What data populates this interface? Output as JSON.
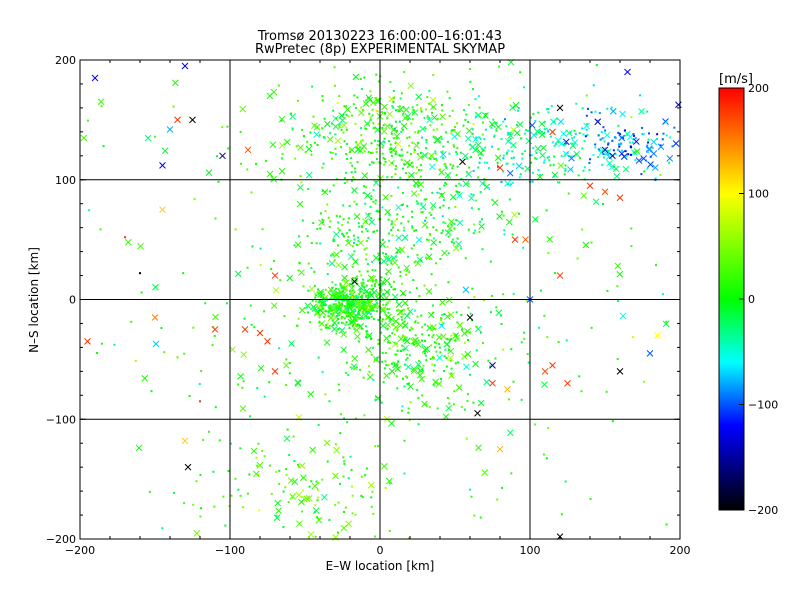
{
  "chart_data": {
    "type": "scatter",
    "title": "Tromsø 20130223 16:00:00–16:01:43",
    "subtitle": "RwPretec (8p) EXPERIMENTAL SKYMAP",
    "xlabel": "E–W location [km]",
    "ylabel": "N–S location [km]",
    "xlim": [
      -200,
      200
    ],
    "ylim": [
      -200,
      200
    ],
    "x_ticks": [
      "−200",
      "−100",
      "0",
      "100",
      "200"
    ],
    "y_ticks": [
      "−200",
      "−100",
      "0",
      "100",
      "200"
    ],
    "grid": true,
    "colorbar": {
      "label": "[m/s]",
      "range": [
        -200,
        200
      ],
      "ticks": [
        "200",
        "100",
        "0",
        "−100",
        "−200"
      ],
      "colors": [
        "#ff0000",
        "#ffff00",
        "#00ff00",
        "#00ffff",
        "#0000ff",
        "#000000"
      ]
    },
    "marker_types": [
      "dot",
      "cross"
    ],
    "clusters": [
      {
        "x": -20,
        "y": -5,
        "sx": 12,
        "sy": 10,
        "n": 420,
        "v": 8
      },
      {
        "x": 5,
        "y": 140,
        "sx": 35,
        "sy": 20,
        "n": 380,
        "v": 15
      },
      {
        "x": 110,
        "y": 130,
        "sx": 40,
        "sy": 18,
        "n": 250,
        "v": -40
      },
      {
        "x": 170,
        "y": 130,
        "sx": 22,
        "sy": 12,
        "n": 90,
        "v": -90
      },
      {
        "x": 20,
        "y": -40,
        "sx": 22,
        "sy": 22,
        "n": 260,
        "v": 10
      },
      {
        "x": 0,
        "y": 50,
        "sx": 25,
        "sy": 25,
        "n": 220,
        "v": 5
      },
      {
        "x": -50,
        "y": -160,
        "sx": 30,
        "sy": 25,
        "n": 120,
        "v": 30
      },
      {
        "x": 50,
        "y": 80,
        "sx": 30,
        "sy": 25,
        "n": 100,
        "v": -20
      },
      {
        "x": 0,
        "y": 0,
        "sx": 110,
        "sy": 110,
        "n": 450,
        "v": 10
      }
    ],
    "highlight_points": [
      {
        "x": -135,
        "y": 150,
        "v": 180,
        "m": "cross"
      },
      {
        "x": -140,
        "y": 142,
        "v": -80,
        "m": "cross"
      },
      {
        "x": -130,
        "y": 195,
        "v": -130,
        "m": "cross"
      },
      {
        "x": -145,
        "y": 112,
        "v": -120,
        "m": "cross"
      },
      {
        "x": -105,
        "y": 120,
        "v": -160,
        "m": "cross"
      },
      {
        "x": -88,
        "y": 125,
        "v": 170,
        "m": "cross"
      },
      {
        "x": -125,
        "y": 150,
        "v": -200,
        "m": "cross"
      },
      {
        "x": -190,
        "y": 185,
        "v": -120,
        "m": "cross"
      },
      {
        "x": 165,
        "y": 190,
        "v": -120,
        "m": "cross"
      },
      {
        "x": 115,
        "y": 140,
        "v": 180,
        "m": "cross"
      },
      {
        "x": 140,
        "y": 95,
        "v": 180,
        "m": "cross"
      },
      {
        "x": 150,
        "y": 90,
        "v": 170,
        "m": "cross"
      },
      {
        "x": 160,
        "y": 85,
        "v": 180,
        "m": "cross"
      },
      {
        "x": 150,
        "y": 125,
        "v": -130,
        "m": "cross"
      },
      {
        "x": 155,
        "y": 120,
        "v": -150,
        "m": "cross"
      },
      {
        "x": 120,
        "y": 160,
        "v": -200,
        "m": "cross"
      },
      {
        "x": 80,
        "y": 110,
        "v": 180,
        "m": "cross"
      },
      {
        "x": 90,
        "y": 50,
        "v": 180,
        "m": "cross"
      },
      {
        "x": 97,
        "y": 50,
        "v": 160,
        "m": "cross"
      },
      {
        "x": 120,
        "y": 20,
        "v": 180,
        "m": "cross"
      },
      {
        "x": 115,
        "y": -55,
        "v": 180,
        "m": "cross"
      },
      {
        "x": 110,
        "y": -60,
        "v": 170,
        "m": "cross"
      },
      {
        "x": 125,
        "y": -70,
        "v": 180,
        "m": "cross"
      },
      {
        "x": 75,
        "y": -55,
        "v": -150,
        "m": "cross"
      },
      {
        "x": 60,
        "y": -15,
        "v": -200,
        "m": "cross"
      },
      {
        "x": 160,
        "y": -60,
        "v": -200,
        "m": "cross"
      },
      {
        "x": 180,
        "y": -45,
        "v": -100,
        "m": "cross"
      },
      {
        "x": 185,
        "y": -30,
        "v": 100,
        "m": "cross"
      },
      {
        "x": 75,
        "y": -70,
        "v": 180,
        "m": "cross"
      },
      {
        "x": 85,
        "y": -75,
        "v": 130,
        "m": "cross"
      },
      {
        "x": 65,
        "y": -95,
        "v": -200,
        "m": "cross"
      },
      {
        "x": 80,
        "y": -125,
        "v": 130,
        "m": "cross"
      },
      {
        "x": 120,
        "y": -198,
        "v": -200,
        "m": "cross"
      },
      {
        "x": -128,
        "y": -140,
        "v": -200,
        "m": "cross"
      },
      {
        "x": -130,
        "y": -118,
        "v": 120,
        "m": "cross"
      },
      {
        "x": -70,
        "y": 20,
        "v": 180,
        "m": "cross"
      },
      {
        "x": -110,
        "y": -25,
        "v": 180,
        "m": "cross"
      },
      {
        "x": -90,
        "y": -25,
        "v": 180,
        "m": "cross"
      },
      {
        "x": -80,
        "y": -28,
        "v": 180,
        "m": "cross"
      },
      {
        "x": -75,
        "y": -35,
        "v": 180,
        "m": "cross"
      },
      {
        "x": -70,
        "y": -60,
        "v": 180,
        "m": "cross"
      },
      {
        "x": -195,
        "y": -35,
        "v": 180,
        "m": "cross"
      },
      {
        "x": -150,
        "y": -15,
        "v": 150,
        "m": "cross"
      },
      {
        "x": -145,
        "y": 75,
        "v": 120,
        "m": "cross"
      },
      {
        "x": -17,
        "y": 15,
        "v": -200,
        "m": "cross"
      },
      {
        "x": 55,
        "y": 115,
        "v": -200,
        "m": "cross"
      },
      {
        "x": 100,
        "y": 0,
        "v": -100,
        "m": "cross"
      },
      {
        "x": -120,
        "y": -85,
        "v": 180,
        "m": "dot"
      },
      {
        "x": -160,
        "y": 22,
        "v": -200,
        "m": "dot"
      },
      {
        "x": -170,
        "y": 52,
        "v": 180,
        "m": "dot"
      }
    ]
  }
}
